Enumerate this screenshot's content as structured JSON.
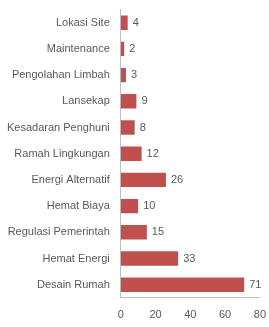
{
  "chart_data": {
    "type": "bar",
    "orientation": "horizontal",
    "categories": [
      "Lokasi Site",
      "Maintenance",
      "Pengolahan Limbah",
      "Lansekap",
      "Kesadaran Penghuni",
      "Ramah Lingkungan",
      "Energi Alternatif",
      "Hemat Biaya",
      "Regulasi Pemerintah",
      "Hemat Energi",
      "Desain Rumah"
    ],
    "values": [
      4,
      2,
      3,
      9,
      8,
      12,
      26,
      10,
      15,
      33,
      71
    ],
    "color": "#c0504d",
    "xlim": [
      0,
      80
    ],
    "xticks": [
      0,
      20,
      40,
      60,
      80
    ],
    "grid": false,
    "data_labels": true
  }
}
